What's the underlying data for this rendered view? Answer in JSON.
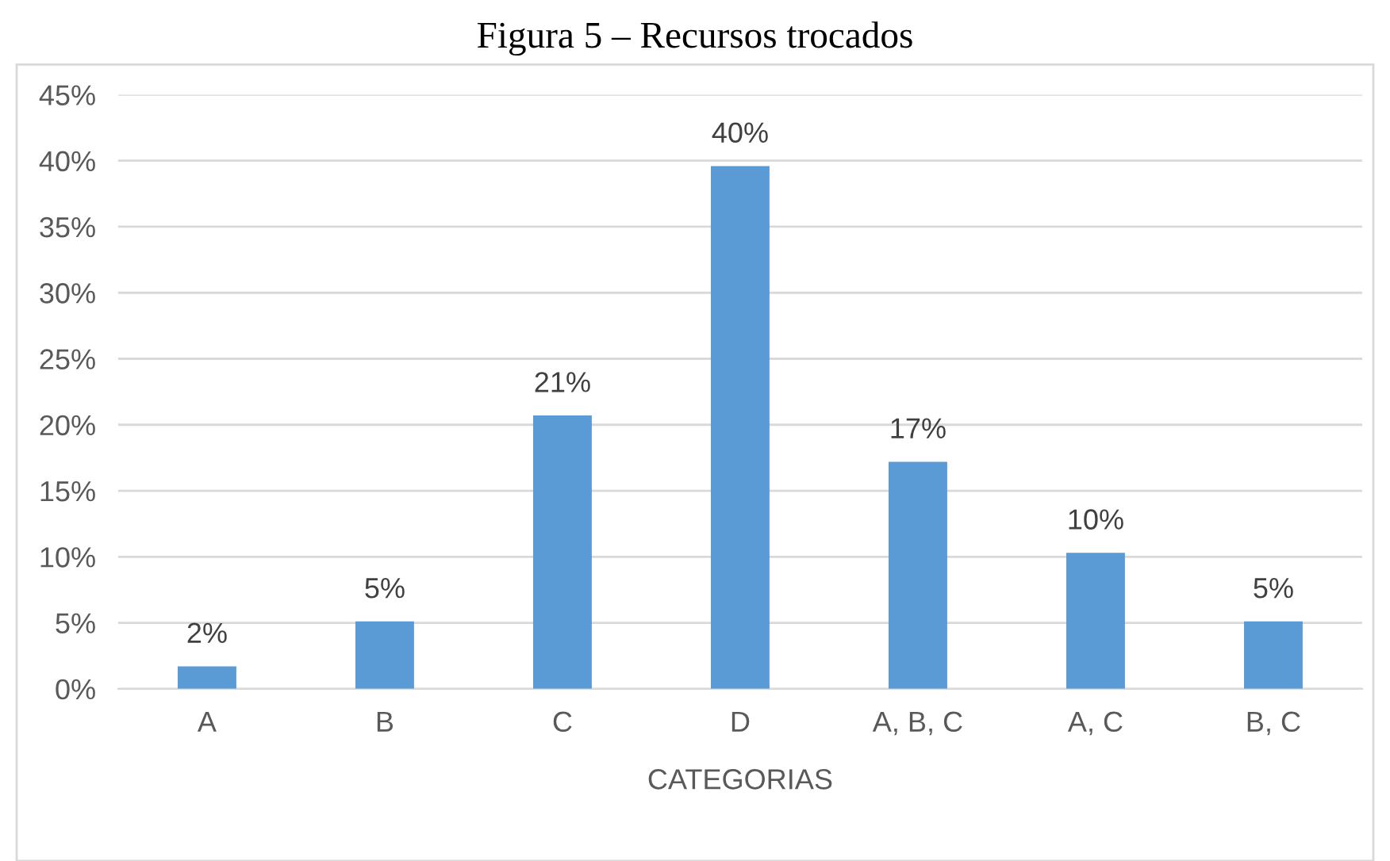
{
  "chart_data": {
    "type": "bar",
    "title": "Figura 5 – Recursos trocados",
    "xlabel": "CATEGORIAS",
    "categories": [
      "A",
      "B",
      "C",
      "D",
      "A, B, C",
      "A, C",
      "B, C"
    ],
    "values": [
      1.7,
      5.1,
      20.7,
      39.6,
      17.2,
      10.3,
      5.1
    ],
    "value_labels": [
      "2%",
      "5%",
      "21%",
      "40%",
      "17%",
      "10%",
      "5%"
    ],
    "color": "#5b9bd5",
    "ylim": [
      0,
      45
    ],
    "yticks": [
      {
        "value": 0,
        "label": "0%"
      },
      {
        "value": 5,
        "label": "5%"
      },
      {
        "value": 10,
        "label": "10%"
      },
      {
        "value": 15,
        "label": "15%"
      },
      {
        "value": 20,
        "label": "20%"
      },
      {
        "value": 25,
        "label": "25%"
      },
      {
        "value": 30,
        "label": "30%"
      },
      {
        "value": 35,
        "label": "35%"
      },
      {
        "value": 40,
        "label": "40%"
      },
      {
        "value": 45,
        "label": "45%"
      }
    ],
    "grid": "y",
    "legend": false
  }
}
